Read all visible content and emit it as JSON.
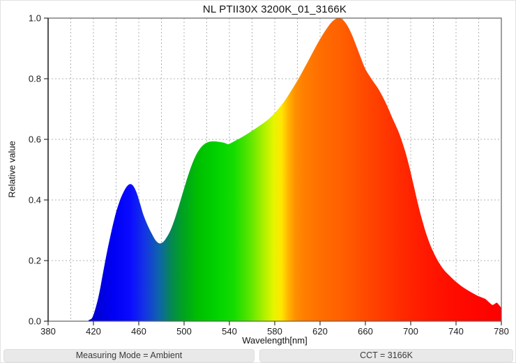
{
  "title": "NL PTII30X 3200K_01_3166K",
  "status_bar": {
    "measuring_mode": "Measuring Mode = Ambient",
    "cct": "CCT = 3166K",
    "background": "#e9e9e9",
    "text_color": "#3a3a3a"
  },
  "chart_data": {
    "type": "area",
    "title": "NL PTII30X 3200K_01_3166K",
    "xlabel": "Wavelength[nm]",
    "ylabel": "Relative value",
    "xlim": [
      380,
      780
    ],
    "ylim": [
      0.0,
      1.0
    ],
    "x_tick_labels": [
      "380",
      "420",
      "460",
      "500",
      "540",
      "580",
      "620",
      "660",
      "700",
      "740",
      "780"
    ],
    "x_tick_values": [
      380,
      420,
      460,
      500,
      540,
      580,
      620,
      660,
      700,
      740,
      780
    ],
    "y_tick_labels": [
      "0.0",
      "0.2",
      "0.4",
      "0.6",
      "0.8",
      "1.0"
    ],
    "y_tick_values": [
      0.0,
      0.2,
      0.4,
      0.6,
      0.8,
      1.0
    ],
    "grid": {
      "vertical_step_nm": 20,
      "horizontal_step": 0.2,
      "style": "dashed",
      "color": "#b0b0b0"
    },
    "axis_color": "#606060",
    "y_axis_line_color": "#141414",
    "tick_text_color": "#1a1a1a",
    "legend": "none",
    "series": [
      {
        "name": "spectral-power-distribution",
        "points": [
          [
            380,
            0
          ],
          [
            412,
            0
          ],
          [
            416,
            0.004
          ],
          [
            419,
            0.012
          ],
          [
            422,
            0.045
          ],
          [
            425,
            0.09
          ],
          [
            428,
            0.15
          ],
          [
            431,
            0.21
          ],
          [
            434,
            0.265
          ],
          [
            437,
            0.315
          ],
          [
            440,
            0.36
          ],
          [
            443,
            0.395
          ],
          [
            446,
            0.422
          ],
          [
            449,
            0.442
          ],
          [
            452,
            0.452
          ],
          [
            455,
            0.447
          ],
          [
            458,
            0.425
          ],
          [
            461,
            0.39
          ],
          [
            464,
            0.352
          ],
          [
            468,
            0.315
          ],
          [
            472,
            0.285
          ],
          [
            475,
            0.266
          ],
          [
            478,
            0.257
          ],
          [
            481,
            0.26
          ],
          [
            484,
            0.273
          ],
          [
            488,
            0.3
          ],
          [
            492,
            0.34
          ],
          [
            496,
            0.388
          ],
          [
            500,
            0.438
          ],
          [
            504,
            0.486
          ],
          [
            508,
            0.527
          ],
          [
            512,
            0.558
          ],
          [
            516,
            0.578
          ],
          [
            520,
            0.589
          ],
          [
            524,
            0.593
          ],
          [
            528,
            0.593
          ],
          [
            532,
            0.591
          ],
          [
            536,
            0.588
          ],
          [
            539,
            0.584
          ],
          [
            542,
            0.589
          ],
          [
            546,
            0.597
          ],
          [
            550,
            0.605
          ],
          [
            555,
            0.616
          ],
          [
            560,
            0.628
          ],
          [
            566,
            0.643
          ],
          [
            572,
            0.659
          ],
          [
            578,
            0.679
          ],
          [
            584,
            0.704
          ],
          [
            590,
            0.734
          ],
          [
            596,
            0.769
          ],
          [
            601,
            0.8
          ],
          [
            606,
            0.834
          ],
          [
            611,
            0.869
          ],
          [
            616,
            0.904
          ],
          [
            621,
            0.937
          ],
          [
            626,
            0.966
          ],
          [
            630,
            0.986
          ],
          [
            634,
            0.998
          ],
          [
            637,
            1.0
          ],
          [
            640,
            0.995
          ],
          [
            644,
            0.976
          ],
          [
            648,
            0.946
          ],
          [
            652,
            0.908
          ],
          [
            656,
            0.869
          ],
          [
            660,
            0.832
          ],
          [
            666,
            0.796
          ],
          [
            672,
            0.763
          ],
          [
            678,
            0.72
          ],
          [
            684,
            0.669
          ],
          [
            690,
            0.618
          ],
          [
            695,
            0.562
          ],
          [
            699,
            0.506
          ],
          [
            703,
            0.442
          ],
          [
            707,
            0.378
          ],
          [
            711,
            0.322
          ],
          [
            715,
            0.274
          ],
          [
            719,
            0.236
          ],
          [
            724,
            0.199
          ],
          [
            729,
            0.171
          ],
          [
            734,
            0.151
          ],
          [
            739,
            0.133
          ],
          [
            744,
            0.118
          ],
          [
            749,
            0.105
          ],
          [
            754,
            0.094
          ],
          [
            759,
            0.084
          ],
          [
            763,
            0.078
          ],
          [
            766,
            0.073
          ],
          [
            769,
            0.063
          ],
          [
            772,
            0.054
          ],
          [
            774,
            0.057
          ],
          [
            776,
            0.061
          ],
          [
            778,
            0.053
          ],
          [
            780,
            0.044
          ]
        ]
      }
    ],
    "spectrum_gradient_stops": [
      {
        "at": 380,
        "color": "#0000B4"
      },
      {
        "at": 418,
        "color": "#0000CD"
      },
      {
        "at": 438,
        "color": "#0000F5"
      },
      {
        "at": 452,
        "color": "#0A0AFF"
      },
      {
        "at": 465,
        "color": "#1433E6"
      },
      {
        "at": 478,
        "color": "#0E64AA"
      },
      {
        "at": 490,
        "color": "#048C48"
      },
      {
        "at": 500,
        "color": "#00A41E"
      },
      {
        "at": 512,
        "color": "#00BE00"
      },
      {
        "at": 528,
        "color": "#00D200"
      },
      {
        "at": 544,
        "color": "#14DC00"
      },
      {
        "at": 558,
        "color": "#5AE600"
      },
      {
        "at": 570,
        "color": "#AAF000"
      },
      {
        "at": 579,
        "color": "#E6F500"
      },
      {
        "at": 586,
        "color": "#FFE600"
      },
      {
        "at": 592,
        "color": "#FFB400"
      },
      {
        "at": 598,
        "color": "#FF9000"
      },
      {
        "at": 606,
        "color": "#FF7E00"
      },
      {
        "at": 622,
        "color": "#FF6C00"
      },
      {
        "at": 640,
        "color": "#FF5F00"
      },
      {
        "at": 658,
        "color": "#FF4B00"
      },
      {
        "at": 676,
        "color": "#FF3900"
      },
      {
        "at": 694,
        "color": "#FF2800"
      },
      {
        "at": 712,
        "color": "#FF1A00"
      },
      {
        "at": 736,
        "color": "#FF0D00"
      },
      {
        "at": 762,
        "color": "#FF0400"
      },
      {
        "at": 780,
        "color": "#FF0000"
      }
    ]
  }
}
